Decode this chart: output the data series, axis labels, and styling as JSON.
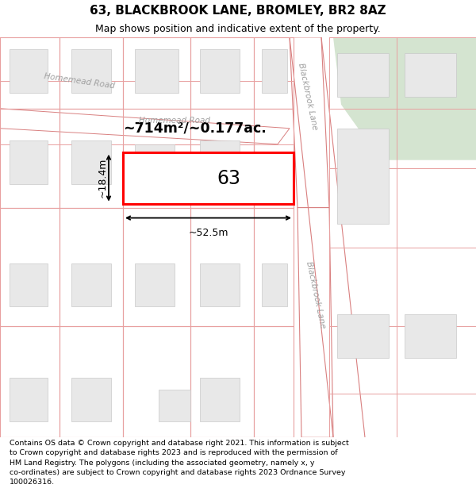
{
  "title": "63, BLACKBROOK LANE, BROMLEY, BR2 8AZ",
  "subtitle": "Map shows position and indicative extent of the property.",
  "footer": "Contains OS data © Crown copyright and database right 2021. This information is subject\nto Crown copyright and database rights 2023 and is reproduced with the permission of\nHM Land Registry. The polygons (including the associated geometry, namely x, y\nco-ordinates) are subject to Crown copyright and database rights 2023 Ordnance Survey\n100026316.",
  "map_bg": "#f7f7f7",
  "road_fill": "#f7f7f7",
  "road_edge": "#e8a0a0",
  "road_center": "#d98080",
  "plot_edge": "#e8a0a0",
  "building_fill": "#e8e8e8",
  "building_edge": "#c8c8c8",
  "green_fill": "#d4e4d0",
  "property_edge": "#ff0000",
  "property_label": "63",
  "area_text": "~714m²/~0.177ac.",
  "dim_width": "~52.5m",
  "dim_height": "~18.4m",
  "label_color": "#a0a0a0",
  "title_fontsize": 11,
  "subtitle_fontsize": 9,
  "footer_fontsize": 6.8
}
